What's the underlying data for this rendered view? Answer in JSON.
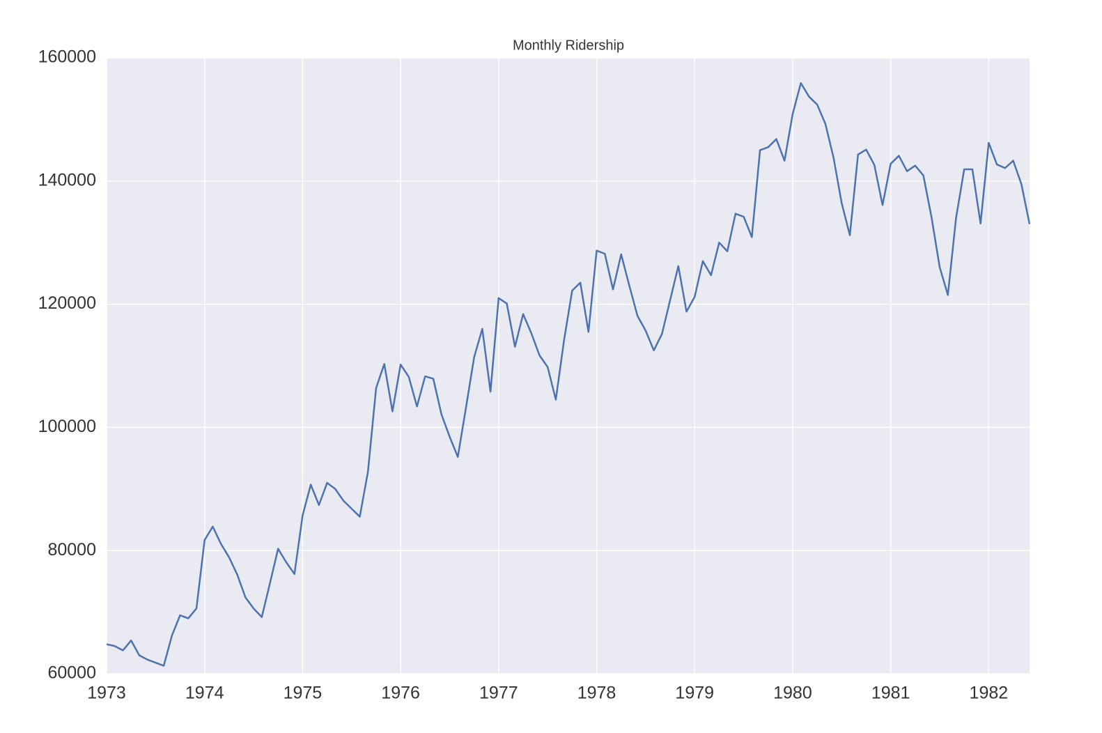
{
  "chart_data": {
    "type": "line",
    "title": "Monthly Ridership",
    "x": [
      1973,
      1973.0833,
      1973.1667,
      1973.25,
      1973.3333,
      1973.4167,
      1973.5,
      1973.5833,
      1973.6667,
      1973.75,
      1973.8333,
      1973.9167,
      1974,
      1974.0833,
      1974.1667,
      1974.25,
      1974.3333,
      1974.4167,
      1974.5,
      1974.5833,
      1974.6667,
      1974.75,
      1974.8333,
      1974.9167,
      1975,
      1975.0833,
      1975.1667,
      1975.25,
      1975.3333,
      1975.4167,
      1975.5,
      1975.5833,
      1975.6667,
      1975.75,
      1975.8333,
      1975.9167,
      1976,
      1976.0833,
      1976.1667,
      1976.25,
      1976.3333,
      1976.4167,
      1976.5,
      1976.5833,
      1976.6667,
      1976.75,
      1976.8333,
      1976.9167,
      1977,
      1977.0833,
      1977.1667,
      1977.25,
      1977.3333,
      1977.4167,
      1977.5,
      1977.5833,
      1977.6667,
      1977.75,
      1977.8333,
      1977.9167,
      1978,
      1978.0833,
      1978.1667,
      1978.25,
      1978.3333,
      1978.4167,
      1978.5,
      1978.5833,
      1978.6667,
      1978.75,
      1978.8333,
      1978.9167,
      1979,
      1979.0833,
      1979.1667,
      1979.25,
      1979.3333,
      1979.4167,
      1979.5,
      1979.5833,
      1979.6667,
      1979.75,
      1979.8333,
      1979.9167,
      1980,
      1980.0833,
      1980.1667,
      1980.25,
      1980.3333,
      1980.4167,
      1980.5,
      1980.5833,
      1980.6667,
      1980.75,
      1980.8333,
      1980.9167,
      1981,
      1981.0833,
      1981.1667,
      1981.25,
      1981.3333,
      1981.4167,
      1981.5,
      1981.5833,
      1981.6667,
      1981.75,
      1981.8333,
      1981.9167,
      1982,
      1982.0833,
      1982.1667,
      1982.25,
      1982.3333,
      1982.4167
    ],
    "values": [
      64800,
      64500,
      63800,
      65400,
      63000,
      62300,
      61800,
      61300,
      66200,
      69500,
      69000,
      70600,
      81700,
      83900,
      81100,
      78900,
      76100,
      72400,
      70600,
      69200,
      74700,
      80300,
      78100,
      76200,
      85700,
      90700,
      87400,
      91000,
      90000,
      88100,
      86800,
      85500,
      92800,
      106400,
      110300,
      102600,
      110200,
      108200,
      103400,
      108300,
      107900,
      102100,
      98500,
      95200,
      103200,
      111400,
      116000,
      105800,
      121000,
      120100,
      113100,
      118400,
      115300,
      111700,
      109800,
      104500,
      114100,
      122200,
      123500,
      115500,
      128700,
      128200,
      122400,
      128100,
      123000,
      118100,
      115700,
      112500,
      115200,
      120700,
      126200,
      118800,
      121200,
      127000,
      124700,
      130000,
      128600,
      134700,
      134200,
      130900,
      145000,
      145500,
      146800,
      143300,
      150900,
      155900,
      153700,
      152400,
      149300,
      143800,
      136400,
      131200,
      144300,
      145100,
      142600,
      136100,
      142800,
      144100,
      141600,
      142500,
      140900,
      134100,
      126000,
      121500,
      134000,
      141900,
      141900,
      133100,
      146200,
      142700,
      142100,
      143300,
      139500,
      133000
    ],
    "color": "#4c72b0",
    "xlim": [
      1973,
      1982.4167
    ],
    "xticks": [
      1973,
      1974,
      1975,
      1976,
      1977,
      1978,
      1979,
      1980,
      1981,
      1982
    ],
    "ylim": [
      60000,
      160000
    ],
    "yticks": [
      60000,
      80000,
      100000,
      120000,
      140000,
      160000
    ],
    "grid": true
  }
}
